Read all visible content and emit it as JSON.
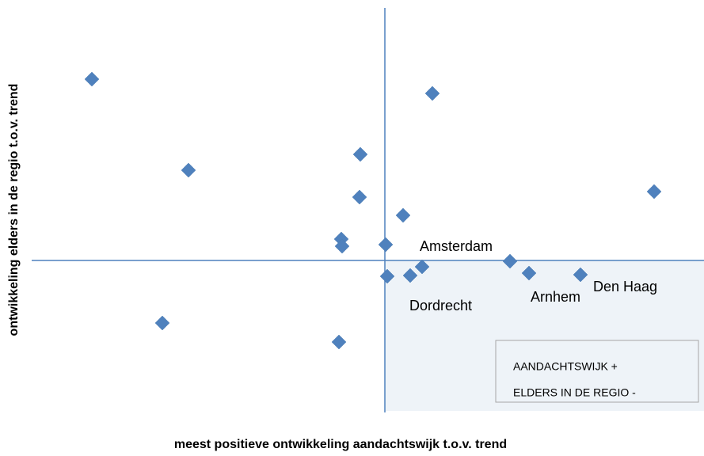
{
  "chart_data": {
    "type": "scatter",
    "x_label": "meest positieve ontwikkeling aandachtswijk t.o.v. trend",
    "y_label": "ontwikkeling elders in de regio t.o.v. trend",
    "color": "#4f81bd",
    "xlim": [
      -45,
      40
    ],
    "ylim": [
      -19,
      32
    ],
    "x": [
      -37,
      -24.8,
      -28.1,
      -5.8,
      -3.1,
      -3.2,
      -5.5,
      -5.4,
      0.1,
      2.3,
      6,
      0.3,
      3.2,
      4.7,
      15.8,
      18.2,
      24.7,
      34
    ],
    "values": [
      22.9,
      11.4,
      -7.9,
      -10.3,
      13.4,
      8,
      2.7,
      1.8,
      2,
      5.7,
      21.1,
      -2,
      -1.9,
      -0.8,
      -0.1,
      -1.6,
      -1.8,
      8.7
    ],
    "annotations": [
      {
        "text": "Amsterdam",
        "x": 4.4,
        "y": 1.7
      },
      {
        "text": "Dordrecht",
        "x": 3.1,
        "y": -5.8
      },
      {
        "text": "Arnhem",
        "x": 18.4,
        "y": -4.7
      },
      {
        "text": "Den Haag",
        "x": 26.3,
        "y": -3.4
      }
    ],
    "quadrant_note": [
      "AANDACHTSWIJK +",
      "ELDERS IN DE REGIO -"
    ]
  }
}
